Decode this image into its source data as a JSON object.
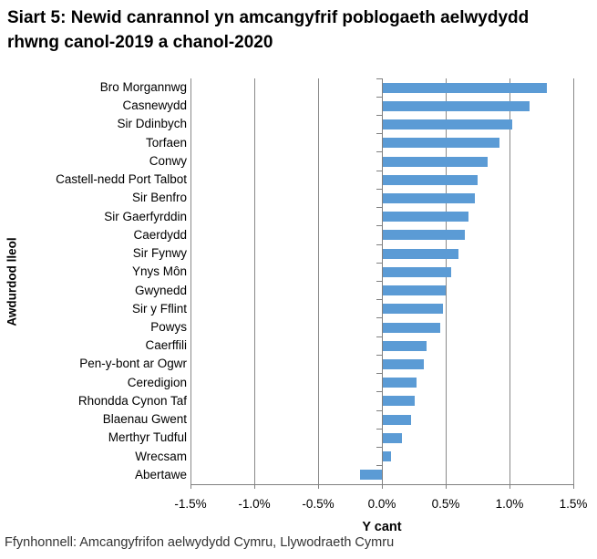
{
  "title": "Siart 5: Newid canrannol yn amcangyfrif poblogaeth aelwydydd rhwng canol-2019 a chanol-2020",
  "source": "Ffynhonnell: Amcangyfrifon aelwydydd Cymru, Llywodraeth Cymru",
  "colors": {
    "bar": "#5B9BD5",
    "grid": "#898989",
    "axis": "#808080",
    "text": "#000000",
    "source_text": "#333333"
  },
  "chart_data": {
    "type": "bar",
    "orientation": "horizontal",
    "title": "Siart 5: Newid canrannol yn amcangyfrif poblogaeth aelwydydd rhwng canol-2019 a chanol-2020",
    "xlabel": "Y cant",
    "ylabel": "Awdurdod lleol",
    "xlim": [
      -1.5,
      1.5
    ],
    "grid": true,
    "legend": false,
    "x_tick_labels": [
      "-1.5%",
      "-1.0%",
      "-0.5%",
      "0.0%",
      "0.5%",
      "1.0%",
      "1.5%"
    ],
    "x_tick_values": [
      -1.5,
      -1.0,
      -0.5,
      0.0,
      0.5,
      1.0,
      1.5
    ],
    "categories": [
      "Bro Morgannwg",
      "Casnewydd",
      "Sir Ddinbych",
      "Torfaen",
      "Conwy",
      "Castell-nedd Port Talbot",
      "Sir Benfro",
      "Sir Gaerfyrddin",
      "Caerdydd",
      "Sir Fynwy",
      "Ynys Môn",
      "Gwynedd",
      "Sir y Fflint",
      "Powys",
      "Caerffili",
      "Pen-y-bont ar Ogwr",
      "Ceredigion",
      "Rhondda Cynon Taf",
      "Blaenau Gwent",
      "Merthyr Tudful",
      "Wrecsam",
      "Abertawe"
    ],
    "values": [
      1.29,
      1.16,
      1.02,
      0.92,
      0.83,
      0.75,
      0.73,
      0.68,
      0.65,
      0.6,
      0.54,
      0.5,
      0.48,
      0.46,
      0.35,
      0.33,
      0.27,
      0.26,
      0.23,
      0.16,
      0.07,
      -0.17
    ],
    "unit": "%"
  }
}
